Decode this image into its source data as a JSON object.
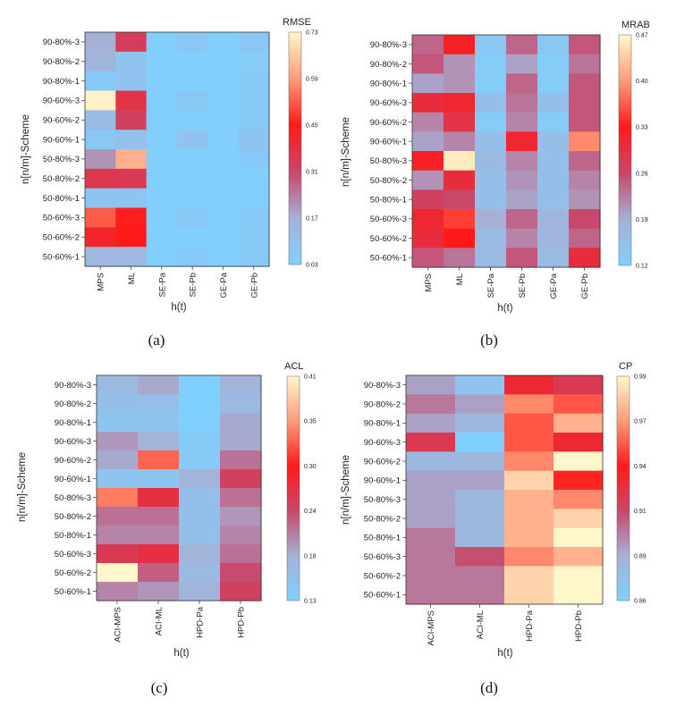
{
  "chart_data": [
    {
      "type": "heatmap",
      "panel_label": "(a)",
      "title": "RMSE",
      "xlabel": "h(t)",
      "ylabel": "n[n/m]-Scheme",
      "x": [
        "MPS",
        "ML",
        "SE-Pa",
        "SE-Pb",
        "GE-Pa",
        "GE-Pb"
      ],
      "y": [
        "90-80%-3",
        "90-80%-2",
        "90-80%-1",
        "90-60%-3",
        "90-60%-2",
        "90-60%-1",
        "50-80%-3",
        "50-80%-2",
        "50-80%-1",
        "50-60%-3",
        "50-60%-2",
        "50-60%-1"
      ],
      "values": [
        [
          0.17,
          0.34,
          0.04,
          0.07,
          0.04,
          0.07
        ],
        [
          0.15,
          0.09,
          0.04,
          0.04,
          0.04,
          0.05
        ],
        [
          0.06,
          0.09,
          0.04,
          0.04,
          0.04,
          0.06
        ],
        [
          0.72,
          0.37,
          0.04,
          0.07,
          0.04,
          0.06
        ],
        [
          0.12,
          0.33,
          0.04,
          0.04,
          0.04,
          0.06
        ],
        [
          0.07,
          0.1,
          0.04,
          0.09,
          0.04,
          0.09
        ],
        [
          0.21,
          0.62,
          0.04,
          0.04,
          0.04,
          0.06
        ],
        [
          0.36,
          0.35,
          0.04,
          0.04,
          0.04,
          0.04
        ],
        [
          0.08,
          0.08,
          0.04,
          0.04,
          0.04,
          0.04
        ],
        [
          0.52,
          0.44,
          0.04,
          0.07,
          0.04,
          0.06
        ],
        [
          0.42,
          0.45,
          0.04,
          0.04,
          0.04,
          0.06
        ],
        [
          0.14,
          0.14,
          0.04,
          0.06,
          0.04,
          0.06
        ]
      ],
      "colorbar": {
        "ticks": [
          "0.03",
          "0.17",
          "0.31",
          "0.45",
          "0.59",
          "0.73"
        ],
        "min": 0.03,
        "max": 0.73
      }
    },
    {
      "type": "heatmap",
      "panel_label": "(b)",
      "title": "MRAB",
      "xlabel": "h(t)",
      "ylabel": "n[n/m]-Scheme",
      "x": [
        "MPS",
        "ML",
        "SE-Pa",
        "SE-Pb",
        "GE-Pa",
        "GE-Pb"
      ],
      "y": [
        "90-80%-3",
        "90-80%-2",
        "90-80%-1",
        "90-60%-3",
        "90-60%-2",
        "90-60%-1",
        "50-80%-3",
        "50-80%-2",
        "50-80%-1",
        "50-60%-3",
        "50-60%-2",
        "50-60%-1"
      ],
      "values": [
        [
          0.24,
          0.32,
          0.14,
          0.24,
          0.14,
          0.25
        ],
        [
          0.25,
          0.21,
          0.13,
          0.2,
          0.13,
          0.23
        ],
        [
          0.2,
          0.21,
          0.13,
          0.24,
          0.13,
          0.25
        ],
        [
          0.3,
          0.31,
          0.16,
          0.23,
          0.16,
          0.25
        ],
        [
          0.22,
          0.29,
          0.13,
          0.22,
          0.13,
          0.25
        ],
        [
          0.2,
          0.22,
          0.16,
          0.31,
          0.16,
          0.39
        ],
        [
          0.32,
          0.46,
          0.17,
          0.22,
          0.16,
          0.24
        ],
        [
          0.21,
          0.3,
          0.16,
          0.21,
          0.16,
          0.22
        ],
        [
          0.27,
          0.26,
          0.16,
          0.2,
          0.16,
          0.21
        ],
        [
          0.31,
          0.35,
          0.19,
          0.24,
          0.18,
          0.26
        ],
        [
          0.3,
          0.33,
          0.17,
          0.22,
          0.18,
          0.24
        ],
        [
          0.25,
          0.23,
          0.17,
          0.25,
          0.17,
          0.3
        ]
      ],
      "colorbar": {
        "ticks": [
          "0.12",
          "0.19",
          "0.26",
          "0.33",
          "0.40",
          "0.47"
        ],
        "min": 0.12,
        "max": 0.47
      }
    },
    {
      "type": "heatmap",
      "panel_label": "(c)",
      "title": "ACL",
      "xlabel": "h(t)",
      "ylabel": "n[n/m]-Scheme",
      "x": [
        "ACI-MPS",
        "ACI-ML",
        "HPD-Pa",
        "HPD-Pb"
      ],
      "y": [
        "90-80%-3",
        "90-80%-2",
        "90-80%-1",
        "90-60%-3",
        "90-60%-2",
        "90-60%-1",
        "50-80%-3",
        "50-80%-2",
        "50-80%-1",
        "50-60%-3",
        "50-60%-2",
        "50-60%-1"
      ],
      "values": [
        [
          0.17,
          0.19,
          0.13,
          0.18
        ],
        [
          0.16,
          0.16,
          0.13,
          0.17
        ],
        [
          0.15,
          0.15,
          0.13,
          0.19
        ],
        [
          0.2,
          0.18,
          0.14,
          0.19
        ],
        [
          0.19,
          0.33,
          0.14,
          0.22
        ],
        [
          0.15,
          0.15,
          0.18,
          0.25
        ],
        [
          0.34,
          0.27,
          0.16,
          0.22
        ],
        [
          0.22,
          0.22,
          0.16,
          0.2
        ],
        [
          0.21,
          0.21,
          0.16,
          0.21
        ],
        [
          0.26,
          0.27,
          0.18,
          0.22
        ],
        [
          0.41,
          0.23,
          0.17,
          0.24
        ],
        [
          0.21,
          0.2,
          0.18,
          0.25
        ]
      ],
      "colorbar": {
        "ticks": [
          "0.13",
          "0.18",
          "0.24",
          "0.30",
          "0.35",
          "0.41"
        ],
        "min": 0.13,
        "max": 0.41
      }
    },
    {
      "type": "heatmap",
      "panel_label": "(d)",
      "title": "CP",
      "xlabel": "h(t)",
      "ylabel": "n[n/m]-Scheme",
      "x": [
        "ACI-MPS",
        "ACI-ML",
        "HPD-Pa",
        "HPD-Pb"
      ],
      "y": [
        "90-80%-3",
        "90-80%-2",
        "90-80%-1",
        "90-60%-3",
        "90-60%-2",
        "90-60%-1",
        "50-80%-3",
        "50-80%-2",
        "50-80%-1",
        "50-60%-3",
        "50-60%-2",
        "50-60%-1"
      ],
      "values": [
        [
          0.89,
          0.87,
          0.93,
          0.92
        ],
        [
          0.9,
          0.89,
          0.96,
          0.95
        ],
        [
          0.89,
          0.88,
          0.95,
          0.97
        ],
        [
          0.92,
          0.86,
          0.95,
          0.93
        ],
        [
          0.88,
          0.88,
          0.96,
          0.99
        ],
        [
          0.89,
          0.89,
          0.98,
          0.94
        ],
        [
          0.89,
          0.88,
          0.97,
          0.96
        ],
        [
          0.89,
          0.88,
          0.97,
          0.98
        ],
        [
          0.9,
          0.88,
          0.97,
          0.99
        ],
        [
          0.9,
          0.91,
          0.96,
          0.97
        ],
        [
          0.9,
          0.9,
          0.98,
          0.99
        ],
        [
          0.9,
          0.9,
          0.98,
          0.99
        ]
      ],
      "colorbar": {
        "ticks": [
          "0.86",
          "0.89",
          "0.91",
          "0.94",
          "0.97",
          "0.99"
        ],
        "min": 0.86,
        "max": 0.99
      }
    }
  ]
}
